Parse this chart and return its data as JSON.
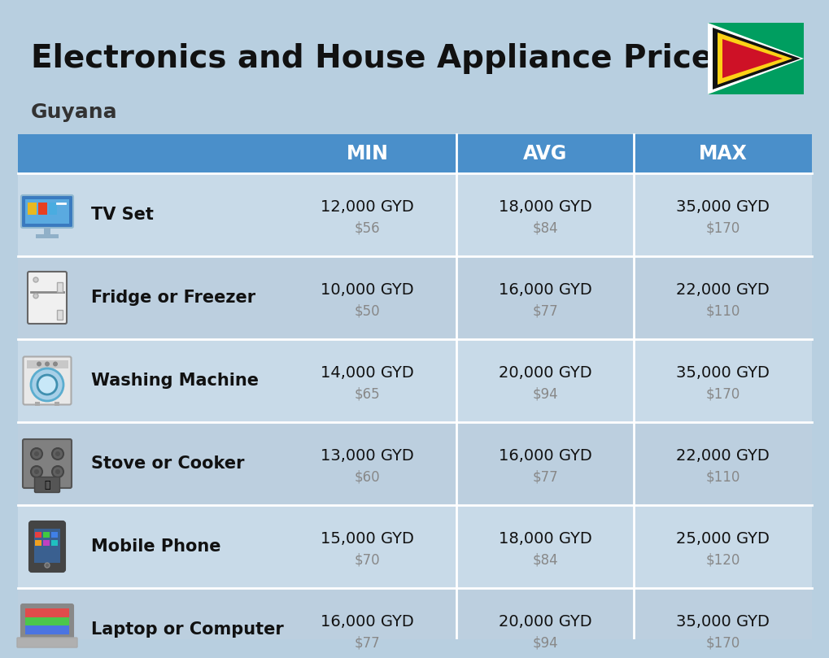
{
  "title": "Electronics and House Appliance Prices",
  "subtitle": "Guyana",
  "background_color": "#b8cfe0",
  "header_color": "#4a8fca",
  "header_text_color": "#ffffff",
  "row_colors": [
    "#c8dae8",
    "#bccfdf"
  ],
  "divider_color": "#ffffff",
  "columns": [
    "MIN",
    "AVG",
    "MAX"
  ],
  "items": [
    {
      "name": "TV Set",
      "min_gyd": "12,000 GYD",
      "min_usd": "$56",
      "avg_gyd": "18,000 GYD",
      "avg_usd": "$84",
      "max_gyd": "35,000 GYD",
      "max_usd": "$170"
    },
    {
      "name": "Fridge or Freezer",
      "min_gyd": "10,000 GYD",
      "min_usd": "$50",
      "avg_gyd": "16,000 GYD",
      "avg_usd": "$77",
      "max_gyd": "22,000 GYD",
      "max_usd": "$110"
    },
    {
      "name": "Washing Machine",
      "min_gyd": "14,000 GYD",
      "min_usd": "$65",
      "avg_gyd": "20,000 GYD",
      "avg_usd": "$94",
      "max_gyd": "35,000 GYD",
      "max_usd": "$170"
    },
    {
      "name": "Stove or Cooker",
      "min_gyd": "13,000 GYD",
      "min_usd": "$60",
      "avg_gyd": "16,000 GYD",
      "avg_usd": "$77",
      "max_gyd": "22,000 GYD",
      "max_usd": "$110"
    },
    {
      "name": "Mobile Phone",
      "min_gyd": "15,000 GYD",
      "min_usd": "$70",
      "avg_gyd": "18,000 GYD",
      "avg_usd": "$84",
      "max_gyd": "25,000 GYD",
      "max_usd": "$120"
    },
    {
      "name": "Laptop or Computer",
      "min_gyd": "16,000 GYD",
      "min_usd": "$77",
      "avg_gyd": "20,000 GYD",
      "avg_usd": "$94",
      "max_gyd": "35,000 GYD",
      "max_usd": "$170"
    }
  ],
  "title_fontsize": 28,
  "subtitle_fontsize": 18,
  "header_fontsize": 17,
  "name_fontsize": 15,
  "gyd_fontsize": 14,
  "usd_fontsize": 12
}
